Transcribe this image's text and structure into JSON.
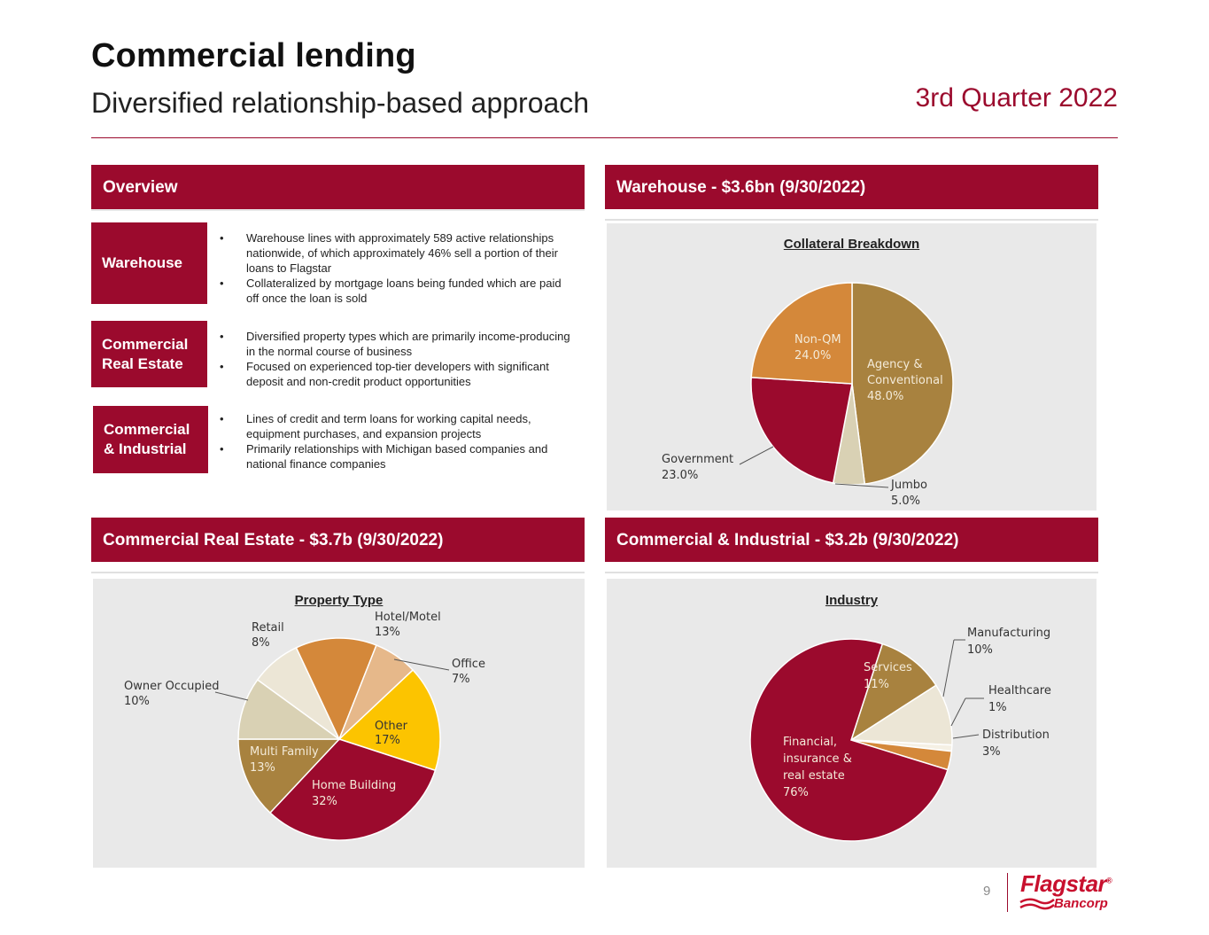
{
  "header": {
    "title": "Commercial lending",
    "subtitle": "Diversified relationship-based approach",
    "quarter": "3rd Quarter 2022"
  },
  "overview": {
    "heading": "Overview",
    "sections": [
      {
        "label": "Warehouse",
        "bullets": [
          "Warehouse lines with approximately 589 active relationships nationwide, of which approximately 46% sell a portion of their loans to Flagstar",
          "Collateralized by mortgage loans being funded which are paid off once the loan is sold"
        ]
      },
      {
        "label": "Commercial Real Estate",
        "bullets": [
          "Diversified property types which are primarily income-producing in the normal course of business",
          "Focused on experienced top-tier developers with significant deposit and non-credit product opportunities"
        ]
      },
      {
        "label": "Commercial & Industrial",
        "bullets": [
          "Lines of credit and term loans for working capital needs, equipment purchases, and expansion projects",
          "Primarily relationships with Michigan based companies and national finance companies"
        ]
      }
    ]
  },
  "warehouse_heading": "Warehouse - $3.6bn (9/30/2022)",
  "cre_heading": "Commercial Real Estate - $3.7b (9/30/2022)",
  "ci_heading": "Commercial & Industrial - $3.2b (9/30/2022)",
  "chart_data": [
    {
      "type": "pie",
      "title": "Collateral Breakdown",
      "slices": [
        {
          "label": "Agency & Conventional",
          "value": 48.0,
          "display": "48.0%",
          "color": "#a8823f"
        },
        {
          "label": "Jumbo",
          "value": 5.0,
          "display": "5.0%",
          "color": "#d9d1b4"
        },
        {
          "label": "Government",
          "value": 23.0,
          "display": "23.0%",
          "color": "#9b0a2d"
        },
        {
          "label": "Non-QM",
          "value": 24.0,
          "display": "24.0%",
          "color": "#d4883a"
        }
      ]
    },
    {
      "type": "pie",
      "title": "Property Type",
      "slices": [
        {
          "label": "Other",
          "value": 17,
          "display": "17%",
          "color": "#fcc400"
        },
        {
          "label": "Home Building",
          "value": 32,
          "display": "32%",
          "color": "#9b0a2d"
        },
        {
          "label": "Multi Family",
          "value": 13,
          "display": "13%",
          "color": "#a8823f"
        },
        {
          "label": "Owner Occupied",
          "value": 10,
          "display": "10%",
          "color": "#d9d1b4"
        },
        {
          "label": "Retail",
          "value": 8,
          "display": "8%",
          "color": "#ece6d6"
        },
        {
          "label": "Hotel/Motel",
          "value": 13,
          "display": "13%",
          "color": "#d4883a"
        },
        {
          "label": "Office",
          "value": 7,
          "display": "7%",
          "color": "#e6b88a"
        }
      ]
    },
    {
      "type": "pie",
      "title": "Industry",
      "slices": [
        {
          "label": "Services",
          "value": 11,
          "display": "11%",
          "color": "#a8823f"
        },
        {
          "label": "Manufacturing",
          "value": 10,
          "display": "10%",
          "color": "#ece6d6"
        },
        {
          "label": "Healthcare",
          "value": 1,
          "display": "1%",
          "color": "#f5f0e4"
        },
        {
          "label": "Distribution",
          "value": 3,
          "display": "3%",
          "color": "#d4883a"
        },
        {
          "label": "Financial, insurance & real estate",
          "value": 76,
          "display": "76%",
          "color": "#9b0a2d"
        }
      ]
    }
  ],
  "footer": {
    "page_number": "9",
    "logo_name": "Flagstar",
    "logo_sub": "Bancorp",
    "logo_mark": "®"
  }
}
